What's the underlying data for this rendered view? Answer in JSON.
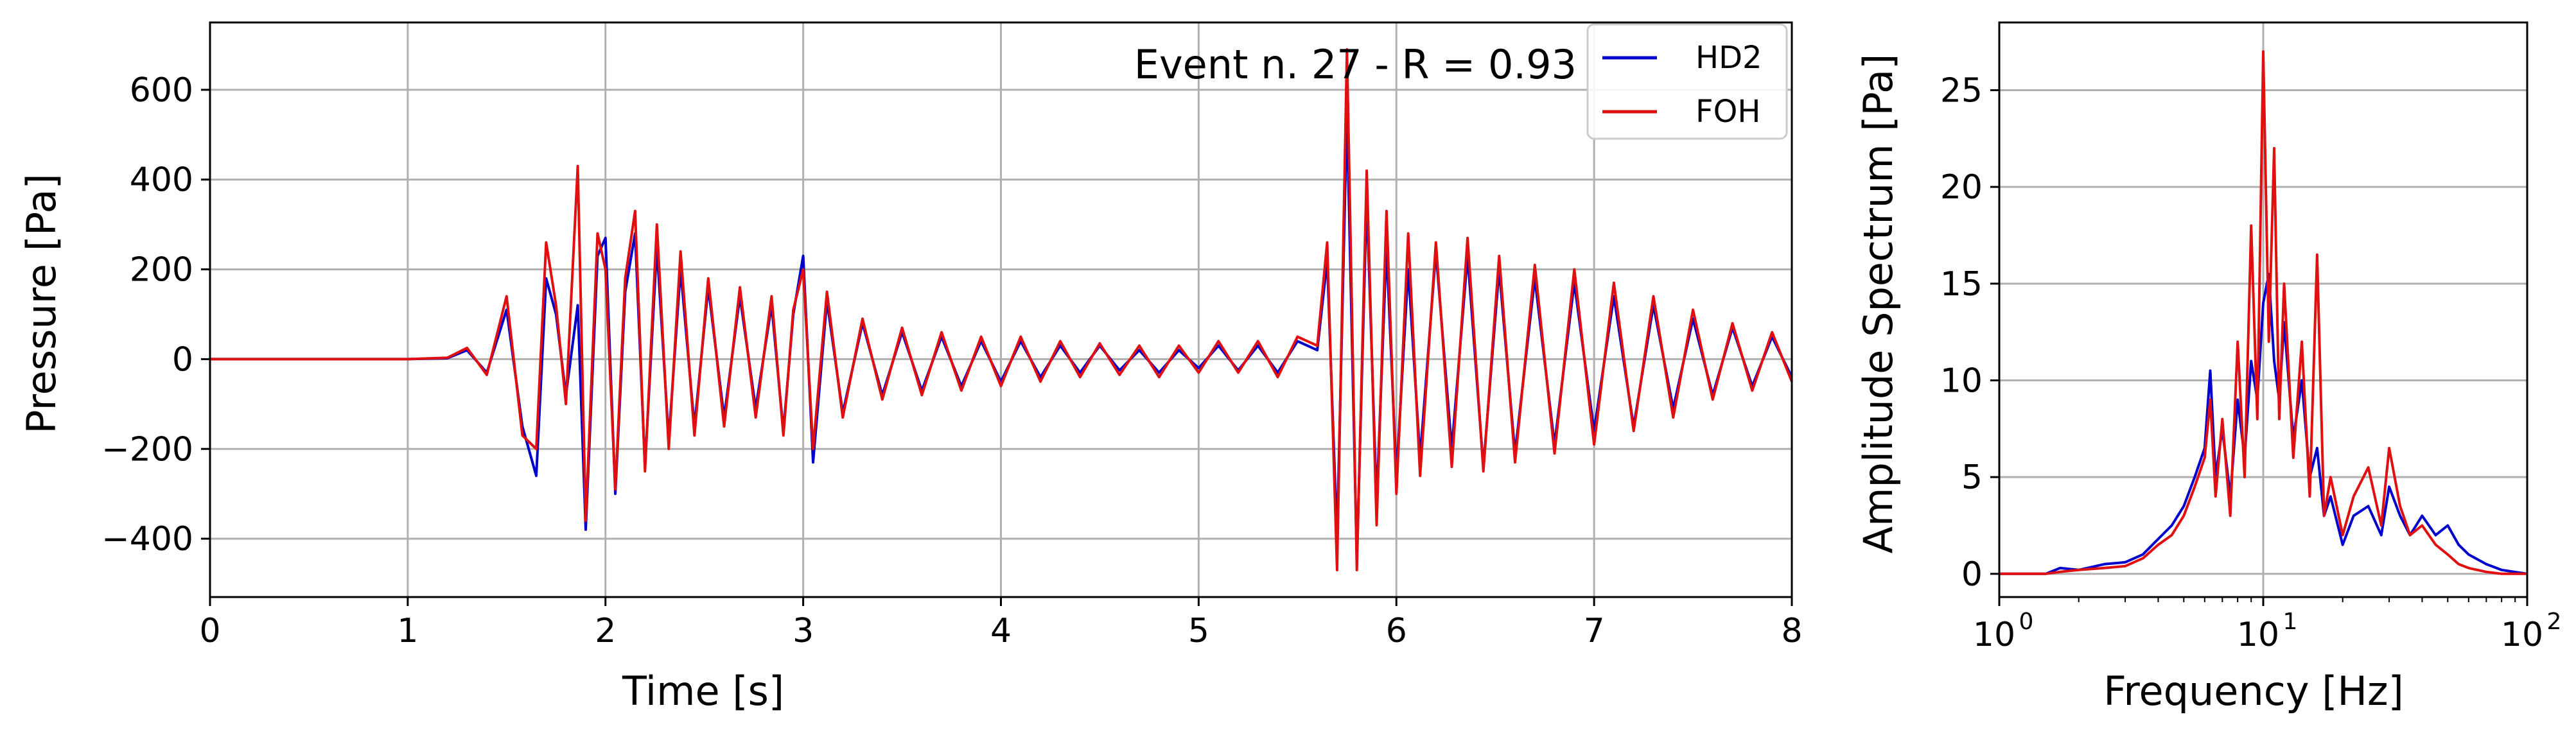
{
  "colors": {
    "hd2": "#0000cc",
    "foh": "#e01010",
    "grid": "#b0b0b0",
    "axis": "#000000"
  },
  "chart_data": [
    {
      "type": "line",
      "title": "Event n. 27 - R = 0.93",
      "xlabel": "Time [s]",
      "ylabel": "Pressure [Pa]",
      "xlim": [
        0,
        8
      ],
      "ylim": [
        -530,
        750
      ],
      "xticks": [
        0,
        1,
        2,
        3,
        4,
        5,
        6,
        7,
        8
      ],
      "xtick_labels": [
        "0",
        "1",
        "2",
        "3",
        "4",
        "5",
        "6",
        "7",
        "8"
      ],
      "yticks": [
        -400,
        -200,
        0,
        200,
        400,
        600
      ],
      "ytick_labels": [
        "−400",
        "−200",
        "0",
        "200",
        "400",
        "600"
      ],
      "grid": true,
      "legend_position": "top-right",
      "series": [
        {
          "name": "HD2",
          "x": [
            0,
            1.0,
            1.2,
            1.3,
            1.4,
            1.5,
            1.58,
            1.65,
            1.7,
            1.75,
            1.8,
            1.86,
            1.9,
            1.96,
            2.0,
            2.05,
            2.1,
            2.15,
            2.2,
            2.26,
            2.32,
            2.38,
            2.45,
            2.52,
            2.6,
            2.68,
            2.76,
            2.84,
            2.9,
            2.95,
            3.0,
            3.05,
            3.12,
            3.2,
            3.3,
            3.4,
            3.5,
            3.6,
            3.7,
            3.8,
            3.9,
            4.0,
            4.1,
            4.2,
            4.3,
            4.4,
            4.5,
            4.6,
            4.7,
            4.8,
            4.9,
            5.0,
            5.1,
            5.2,
            5.3,
            5.4,
            5.5,
            5.6,
            5.65,
            5.7,
            5.75,
            5.8,
            5.85,
            5.9,
            5.95,
            6.0,
            6.06,
            6.12,
            6.2,
            6.28,
            6.36,
            6.44,
            6.52,
            6.6,
            6.7,
            6.8,
            6.9,
            7.0,
            7.1,
            7.2,
            7.3,
            7.4,
            7.5,
            7.6,
            7.7,
            7.8,
            7.9,
            8.0
          ],
          "y": [
            0,
            0,
            2,
            20,
            -30,
            110,
            -150,
            -260,
            180,
            100,
            -80,
            120,
            -380,
            230,
            270,
            -300,
            150,
            280,
            -240,
            250,
            -180,
            200,
            -150,
            160,
            -130,
            140,
            -110,
            120,
            -160,
            100,
            230,
            -230,
            130,
            -120,
            80,
            -80,
            60,
            -70,
            50,
            -60,
            40,
            -50,
            40,
            -40,
            30,
            -30,
            30,
            -25,
            20,
            -30,
            20,
            -20,
            30,
            -25,
            30,
            -30,
            40,
            20,
            220,
            -400,
            550,
            -450,
            360,
            -320,
            250,
            -260,
            200,
            -220,
            240,
            -200,
            230,
            -240,
            200,
            -210,
            180,
            -190,
            170,
            -160,
            140,
            -150,
            120,
            -110,
            90,
            -80,
            70,
            -60,
            50,
            -40
          ]
        },
        {
          "name": "FOH",
          "x": [
            0,
            1.0,
            1.2,
            1.3,
            1.4,
            1.5,
            1.58,
            1.65,
            1.7,
            1.75,
            1.8,
            1.86,
            1.9,
            1.96,
            2.0,
            2.05,
            2.1,
            2.15,
            2.2,
            2.26,
            2.32,
            2.38,
            2.45,
            2.52,
            2.6,
            2.68,
            2.76,
            2.84,
            2.9,
            2.95,
            3.0,
            3.05,
            3.12,
            3.2,
            3.3,
            3.4,
            3.5,
            3.6,
            3.7,
            3.8,
            3.9,
            4.0,
            4.1,
            4.2,
            4.3,
            4.4,
            4.5,
            4.6,
            4.7,
            4.8,
            4.9,
            5.0,
            5.1,
            5.2,
            5.3,
            5.4,
            5.5,
            5.6,
            5.65,
            5.7,
            5.75,
            5.8,
            5.85,
            5.9,
            5.95,
            6.0,
            6.06,
            6.12,
            6.2,
            6.28,
            6.36,
            6.44,
            6.52,
            6.6,
            6.7,
            6.8,
            6.9,
            7.0,
            7.1,
            7.2,
            7.3,
            7.4,
            7.5,
            7.6,
            7.7,
            7.8,
            7.9,
            8.0
          ],
          "y": [
            0,
            0,
            3,
            25,
            -35,
            140,
            -170,
            -200,
            260,
            120,
            -100,
            430,
            -360,
            280,
            200,
            -290,
            180,
            330,
            -250,
            300,
            -200,
            240,
            -170,
            180,
            -150,
            160,
            -130,
            140,
            -170,
            110,
            200,
            -200,
            150,
            -130,
            90,
            -90,
            70,
            -80,
            60,
            -70,
            50,
            -60,
            50,
            -50,
            40,
            -40,
            35,
            -35,
            30,
            -40,
            30,
            -30,
            40,
            -30,
            40,
            -40,
            50,
            30,
            260,
            -470,
            690,
            -470,
            420,
            -370,
            330,
            -300,
            280,
            -260,
            260,
            -240,
            270,
            -250,
            230,
            -230,
            210,
            -210,
            200,
            -190,
            170,
            -160,
            140,
            -130,
            110,
            -90,
            80,
            -70,
            60,
            -50
          ]
        }
      ]
    },
    {
      "type": "line",
      "xlabel": "Frequency [Hz]",
      "ylabel": "Amplitude Spectrum [Pa]",
      "xscale": "log",
      "xlim": [
        1,
        100
      ],
      "ylim": [
        -1.2,
        28.5
      ],
      "xticks": [
        1,
        10,
        100
      ],
      "xtick_labels": [
        {
          "base": "10",
          "exp": "0"
        },
        {
          "base": "10",
          "exp": "1"
        },
        {
          "base": "10",
          "exp": "2"
        }
      ],
      "yticks": [
        0,
        5,
        10,
        15,
        20,
        25
      ],
      "ytick_labels": [
        "0",
        "5",
        "10",
        "15",
        "20",
        "25"
      ],
      "grid": true,
      "series": [
        {
          "name": "HD2",
          "x": [
            1,
            1.5,
            1.7,
            2.0,
            2.5,
            3.0,
            3.5,
            4.0,
            4.5,
            5.0,
            5.5,
            6.0,
            6.3,
            6.6,
            7.0,
            7.5,
            8.0,
            8.5,
            9.0,
            9.5,
            10.0,
            10.5,
            11.0,
            11.5,
            12.0,
            13.0,
            14.0,
            15.0,
            16.0,
            17.0,
            18.0,
            20.0,
            22.0,
            25.0,
            28.0,
            30.0,
            33.0,
            36.0,
            40.0,
            45.0,
            50.0,
            55.0,
            60.0,
            70.0,
            80.0,
            100.0
          ],
          "y": [
            0,
            0,
            0.3,
            0.2,
            0.5,
            0.6,
            1.0,
            1.8,
            2.5,
            3.5,
            5.0,
            6.5,
            10.5,
            5.0,
            7.5,
            4.0,
            9.0,
            6.0,
            11.0,
            9.0,
            14.0,
            15.5,
            11.0,
            9.0,
            13.0,
            7.0,
            10.0,
            5.0,
            6.5,
            3.0,
            4.0,
            1.5,
            3.0,
            3.5,
            2.0,
            4.5,
            3.0,
            2.0,
            3.0,
            2.0,
            2.5,
            1.5,
            1.0,
            0.5,
            0.2,
            0
          ]
        },
        {
          "name": "FOH",
          "x": [
            1,
            1.5,
            1.7,
            2.0,
            2.5,
            3.0,
            3.5,
            4.0,
            4.5,
            5.0,
            5.5,
            6.0,
            6.3,
            6.6,
            7.0,
            7.5,
            8.0,
            8.5,
            9.0,
            9.5,
            10.0,
            10.5,
            11.0,
            11.5,
            12.0,
            13.0,
            14.0,
            15.0,
            16.0,
            17.0,
            18.0,
            20.0,
            22.0,
            25.0,
            28.0,
            30.0,
            33.0,
            36.0,
            40.0,
            45.0,
            50.0,
            55.0,
            60.0,
            70.0,
            80.0,
            100.0
          ],
          "y": [
            0,
            0,
            0.1,
            0.2,
            0.3,
            0.4,
            0.8,
            1.5,
            2.0,
            3.0,
            4.5,
            6.0,
            9.0,
            4.0,
            8.0,
            3.0,
            12.0,
            5.0,
            18.0,
            8.0,
            27.0,
            12.0,
            22.0,
            8.0,
            15.0,
            6.0,
            12.0,
            4.0,
            16.5,
            3.0,
            5.0,
            2.0,
            4.0,
            5.5,
            2.5,
            6.5,
            3.5,
            2.0,
            2.5,
            1.5,
            1.0,
            0.5,
            0.3,
            0.1,
            0,
            0
          ]
        }
      ]
    }
  ]
}
